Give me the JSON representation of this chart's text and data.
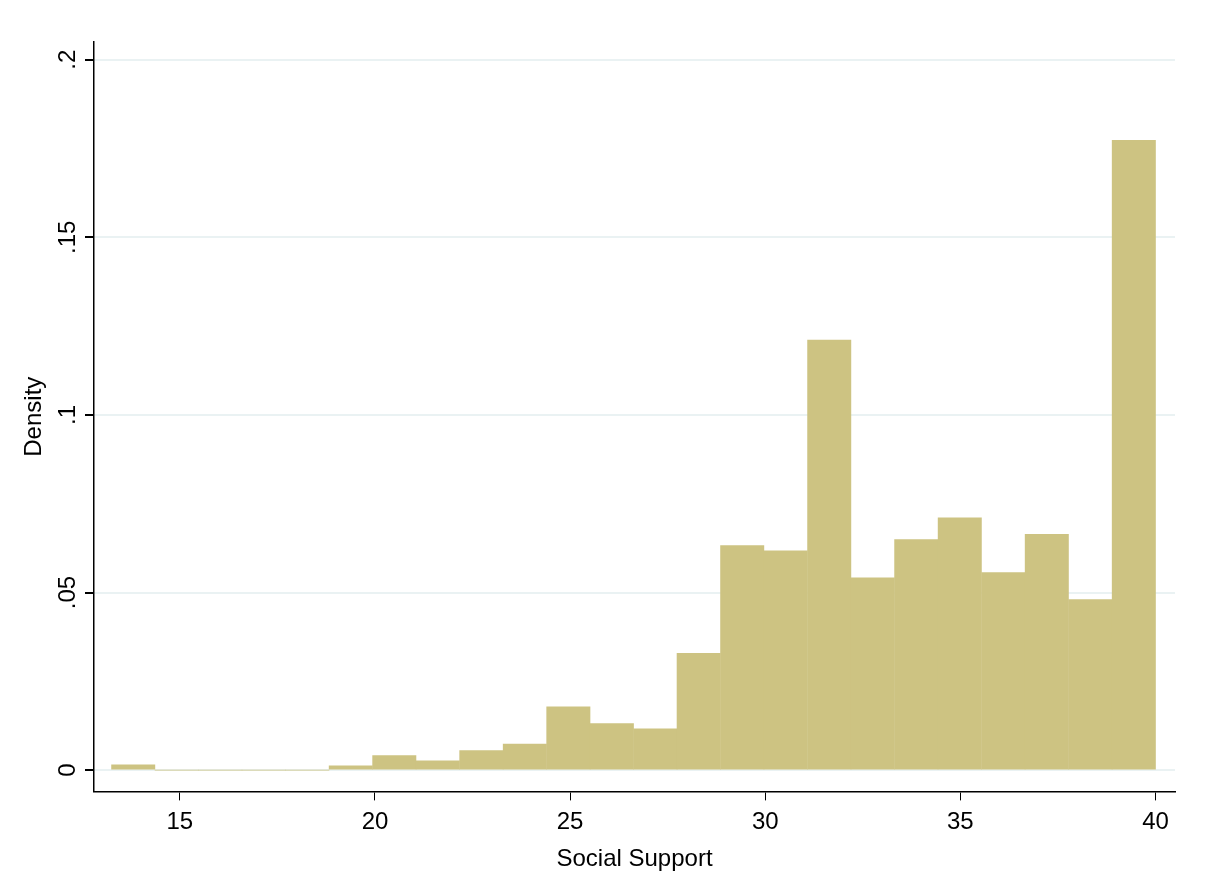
{
  "chart_data": {
    "type": "histogram",
    "xlabel": "Social Support",
    "ylabel": "Density",
    "bins": [
      13.25,
      14.36,
      15.48,
      16.59,
      17.71,
      18.82,
      19.94,
      21.05,
      22.17,
      23.28,
      24.4,
      25.51,
      26.63,
      27.74,
      28.85,
      29.97,
      31.08,
      32.2,
      33.31,
      34.43,
      35.54,
      36.66,
      37.77,
      38.89,
      40
    ],
    "values": [
      0.0015,
      0,
      0,
      0,
      0,
      0.0012,
      0.0041,
      0.0026,
      0.0055,
      0.0073,
      0.0178,
      0.0131,
      0.0116,
      0.0329,
      0.0632,
      0.0617,
      0.1211,
      0.0541,
      0.0649,
      0.071,
      0.0556,
      0.0664,
      0.048,
      0.1773
    ],
    "color": "#cdc382",
    "xlim": [
      12.8,
      40.5
    ],
    "xticks": [
      15,
      20,
      25,
      30,
      35,
      40
    ],
    "ylim": [
      -0.006,
      0.205
    ],
    "yticks": [
      0,
      {
        "value": 0.05,
        "label": ".05"
      },
      {
        "value": 0.1,
        "label": ".1"
      },
      {
        "value": 0.15,
        "label": ".15"
      },
      {
        "value": 0.2,
        "label": ".2"
      }
    ],
    "grid": "y",
    "legend": false
  }
}
